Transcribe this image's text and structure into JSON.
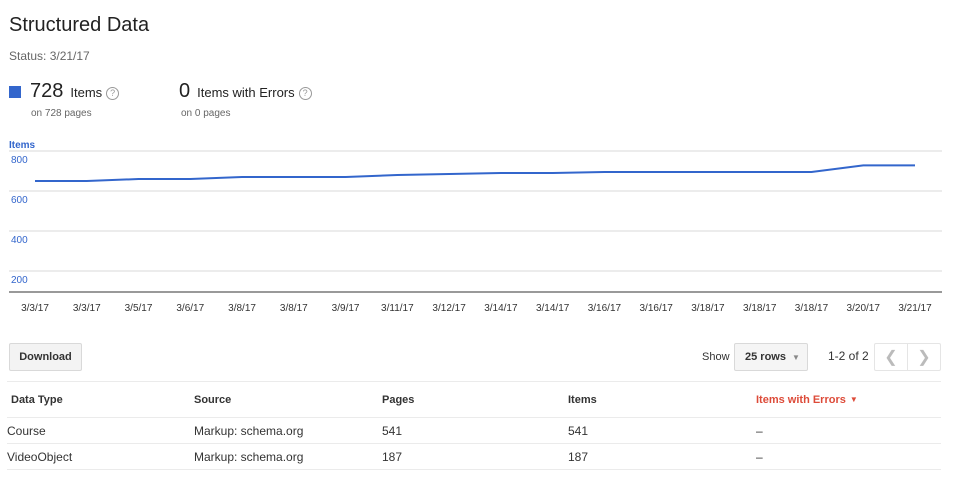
{
  "header": {
    "title": "Structured Data",
    "status": "Status: 3/21/17"
  },
  "stats": {
    "items": {
      "count": "728",
      "label": "Items",
      "sub": "on 728 pages",
      "color": "#3366cc"
    },
    "errors": {
      "count": "0",
      "label": "Items with Errors",
      "sub": "on 0 pages"
    }
  },
  "chart_label": "Items",
  "chart_data": {
    "type": "line",
    "ylabel": "Items",
    "ylim": [
      130,
      840
    ],
    "yticks": [
      200,
      400,
      600,
      800
    ],
    "grid": true,
    "x": [
      "3/3/17",
      "3/3/17",
      "3/5/17",
      "3/6/17",
      "3/8/17",
      "3/8/17",
      "3/9/17",
      "3/11/17",
      "3/12/17",
      "3/14/17",
      "3/14/17",
      "3/16/17",
      "3/16/17",
      "3/18/17",
      "3/18/17",
      "3/18/17",
      "3/20/17",
      "3/21/17"
    ],
    "series": [
      {
        "values": [
          650,
          650,
          660,
          660,
          670,
          670,
          670,
          680,
          685,
          690,
          690,
          695,
          695,
          695,
          695,
          695,
          728,
          728
        ],
        "color": "#3366cc"
      }
    ]
  },
  "toolbar": {
    "download_label": "Download",
    "show_label": "Show",
    "rows_value": "25 rows",
    "pager_text": "1-2 of 2"
  },
  "table": {
    "headers": [
      "Data Type",
      "Source",
      "Pages",
      "Items",
      "Items with Errors"
    ],
    "rows": [
      [
        "Course",
        "Markup: schema.org",
        "541",
        "541",
        "–"
      ],
      [
        "VideoObject",
        "Markup: schema.org",
        "187",
        "187",
        "–"
      ]
    ]
  }
}
